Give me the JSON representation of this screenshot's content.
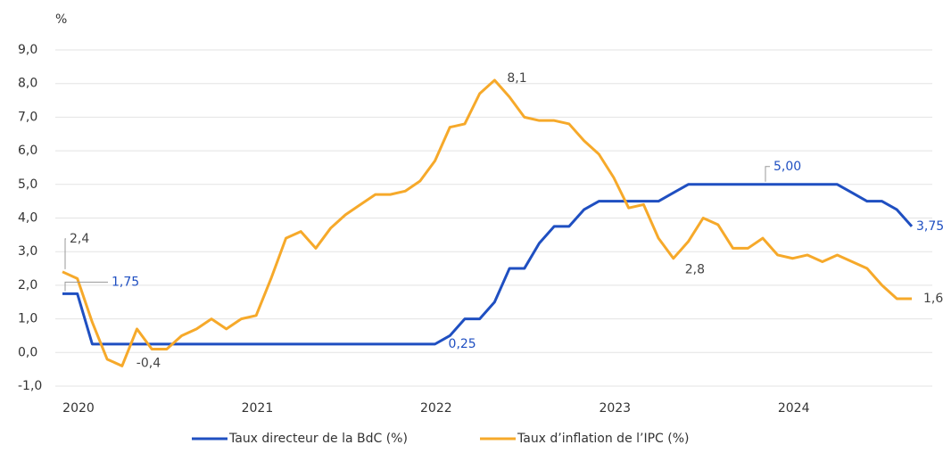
{
  "chart_data": {
    "type": "line",
    "y_label": "%",
    "categories": [
      "2020",
      null,
      null,
      null,
      null,
      null,
      null,
      null,
      null,
      null,
      null,
      null,
      "2021",
      null,
      null,
      null,
      null,
      null,
      null,
      null,
      null,
      null,
      null,
      null,
      "2022",
      null,
      null,
      null,
      null,
      null,
      null,
      null,
      null,
      null,
      null,
      null,
      "2023",
      null,
      null,
      null,
      null,
      null,
      null,
      null,
      null,
      null,
      null,
      null,
      "2024",
      null,
      null,
      null,
      null,
      null,
      null,
      null,
      null,
      null
    ],
    "series": [
      {
        "name": "Taux directeur de la BdC (%)",
        "color": "#1f4fc1",
        "values": [
          1.75,
          1.75,
          0.25,
          0.25,
          0.25,
          0.25,
          0.25,
          0.25,
          0.25,
          0.25,
          0.25,
          0.25,
          0.25,
          0.25,
          0.25,
          0.25,
          0.25,
          0.25,
          0.25,
          0.25,
          0.25,
          0.25,
          0.25,
          0.25,
          0.25,
          0.25,
          0.5,
          1.0,
          1.0,
          1.5,
          2.5,
          2.5,
          3.25,
          3.75,
          3.75,
          4.25,
          4.5,
          4.5,
          4.5,
          4.5,
          4.5,
          4.75,
          5.0,
          5.0,
          5.0,
          5.0,
          5.0,
          5.0,
          5.0,
          5.0,
          5.0,
          5.0,
          5.0,
          4.75,
          4.5,
          4.5,
          4.25,
          3.75
        ],
        "value_labels": [
          "1,75",
          null,
          null,
          null,
          null,
          null,
          null,
          null,
          null,
          null,
          null,
          null,
          null,
          null,
          null,
          null,
          null,
          null,
          null,
          null,
          null,
          null,
          null,
          null,
          null,
          "0,25",
          null,
          null,
          null,
          null,
          null,
          null,
          null,
          null,
          null,
          null,
          null,
          null,
          null,
          null,
          null,
          null,
          null,
          null,
          null,
          null,
          null,
          "5,00",
          null,
          null,
          null,
          null,
          null,
          null,
          null,
          null,
          null,
          "3,75"
        ]
      },
      {
        "name": "Taux d’inflation de l’IPC (%)",
        "color": "#f6a92a",
        "values": [
          2.4,
          2.2,
          0.9,
          -0.2,
          -0.4,
          0.7,
          0.1,
          0.1,
          0.5,
          0.7,
          1.0,
          0.7,
          1.0,
          1.1,
          2.2,
          3.4,
          3.6,
          3.1,
          3.7,
          4.1,
          4.4,
          4.7,
          4.7,
          4.8,
          5.1,
          5.7,
          6.7,
          6.8,
          7.7,
          8.1,
          7.6,
          7.0,
          6.9,
          6.9,
          6.8,
          6.3,
          5.9,
          5.2,
          4.3,
          4.4,
          3.4,
          2.8,
          3.3,
          4.0,
          3.8,
          3.1,
          3.1,
          3.4,
          2.9,
          2.8,
          2.9,
          2.7,
          2.9,
          2.7,
          2.5,
          2.0,
          1.6,
          1.6
        ],
        "value_labels": [
          "2,4",
          null,
          null,
          null,
          "-0,4",
          null,
          null,
          null,
          null,
          null,
          null,
          null,
          null,
          null,
          null,
          null,
          null,
          null,
          null,
          null,
          null,
          null,
          null,
          null,
          null,
          null,
          null,
          null,
          null,
          "8,1",
          null,
          null,
          null,
          null,
          null,
          null,
          null,
          null,
          null,
          null,
          null,
          "2,8",
          null,
          null,
          null,
          null,
          null,
          null,
          null,
          null,
          null,
          null,
          null,
          null,
          null,
          null,
          null,
          "1,6"
        ]
      }
    ],
    "ylim": [
      -1,
      9
    ],
    "yticks": [
      {
        "value": -1,
        "label": "-1,0"
      },
      {
        "value": 0,
        "label": "0,0"
      },
      {
        "value": 1,
        "label": "1,0"
      },
      {
        "value": 2,
        "label": "2,0"
      },
      {
        "value": 3,
        "label": "3,0"
      },
      {
        "value": 4,
        "label": "4,0"
      },
      {
        "value": 5,
        "label": "5,0"
      },
      {
        "value": 6,
        "label": "6,0"
      },
      {
        "value": 7,
        "label": "7,0"
      },
      {
        "value": 8,
        "label": "8,0"
      },
      {
        "value": 9,
        "label": "9,0"
      }
    ],
    "grid": true
  }
}
